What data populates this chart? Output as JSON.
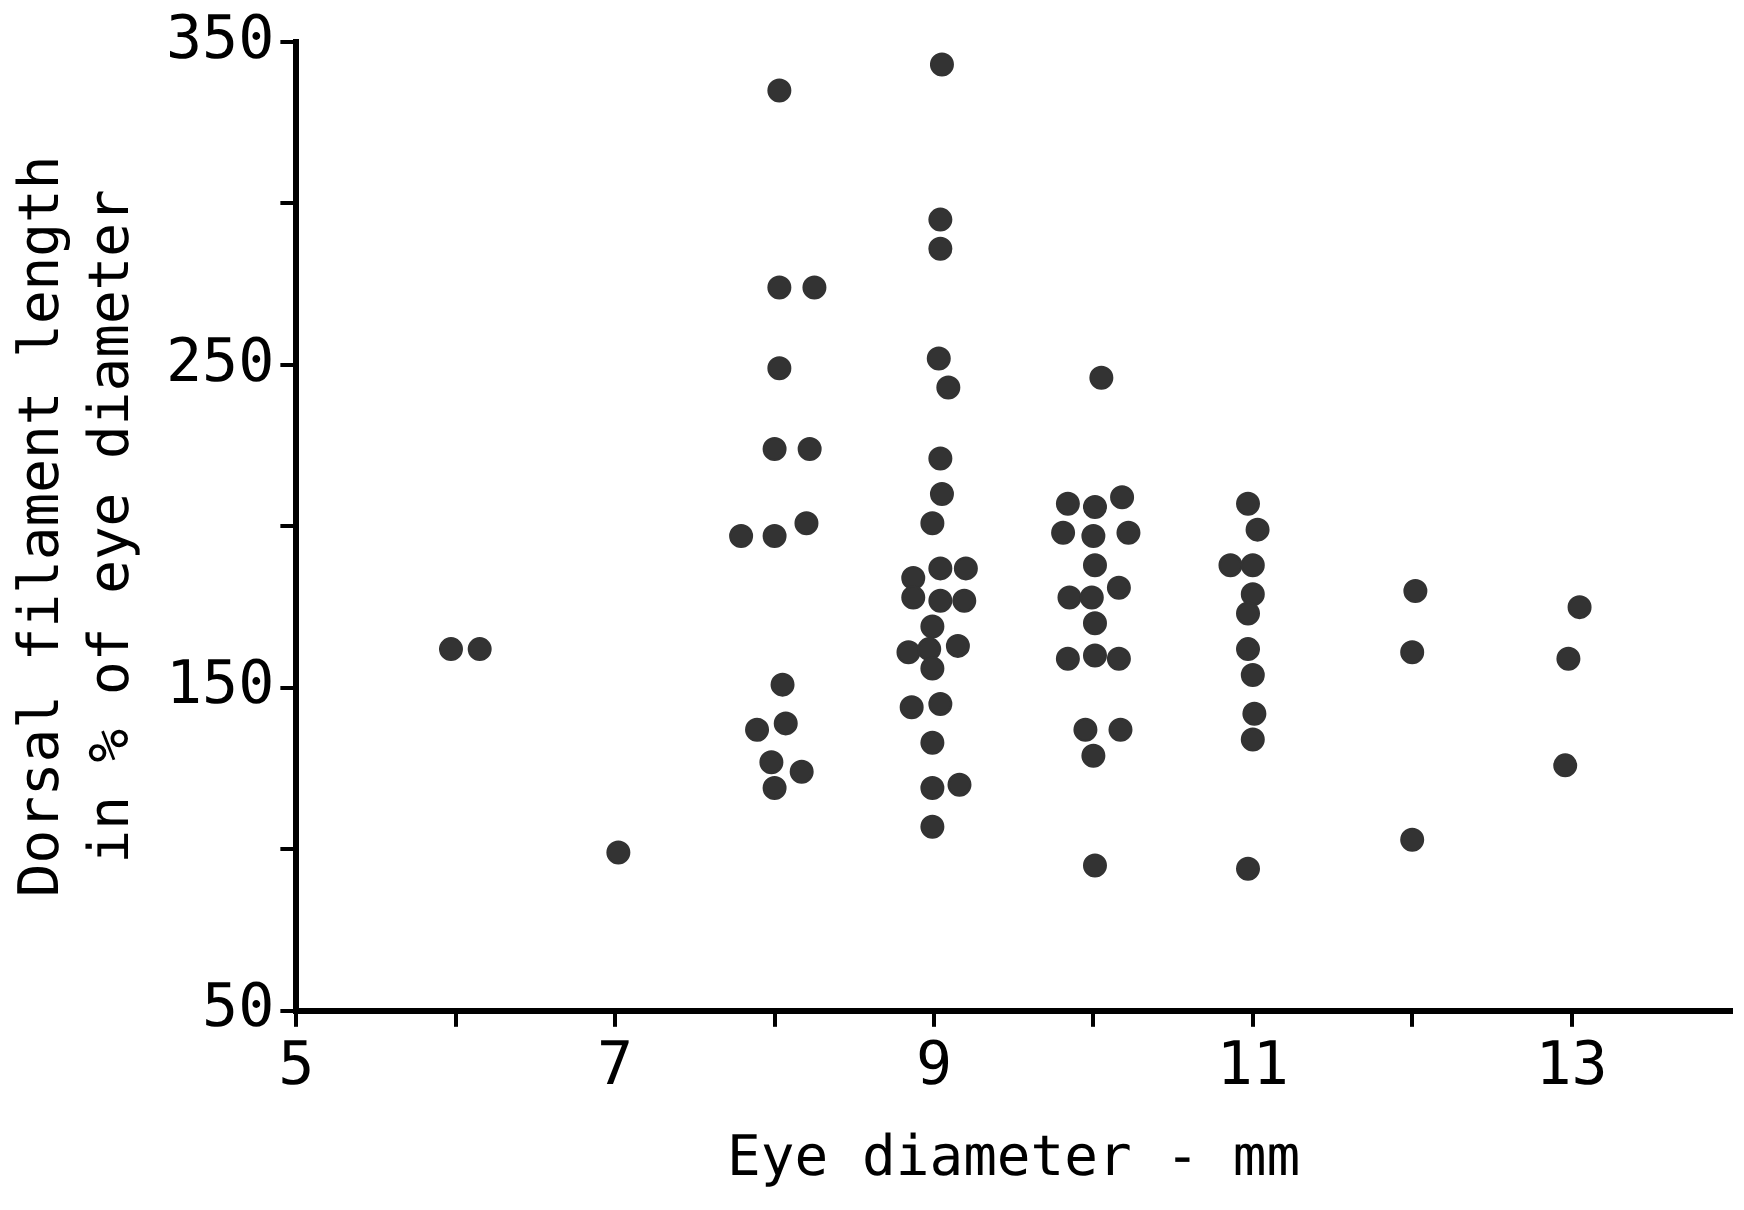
{
  "chart_data": {
    "type": "scatter",
    "xlabel": "Eye diameter - mm",
    "ylabel": "Dorsal filament length\nin % of eye diameter",
    "xlim": [
      5,
      14
    ],
    "xticks": [
      5,
      {
        "value": 6,
        "label": null
      },
      7,
      {
        "value": 8,
        "label": null
      },
      9,
      {
        "value": 10,
        "label": null
      },
      11,
      {
        "value": 12,
        "label": null
      },
      13
    ],
    "ylim": [
      50,
      350
    ],
    "yticks": [
      50,
      {
        "value": 100,
        "label": null
      },
      150,
      {
        "value": 200,
        "label": null
      },
      250,
      {
        "value": 300,
        "label": null
      },
      350
    ],
    "grid": false,
    "legend": false,
    "marker": "circle",
    "series": [
      {
        "color": "#333333",
        "x": [
          5.97,
          6.15,
          7.02,
          8.03,
          8.03,
          8.25,
          8.03,
          8.0,
          8.22,
          7.79,
          8.0,
          8.2,
          8.05,
          8.07,
          7.89,
          7.98,
          8.17,
          8.0,
          9.05,
          9.04,
          9.04,
          9.03,
          9.09,
          9.04,
          9.05,
          8.99,
          8.87,
          9.04,
          9.2,
          8.87,
          9.04,
          9.19,
          8.99,
          8.84,
          8.97,
          9.15,
          8.99,
          8.86,
          9.04,
          8.99,
          8.99,
          9.16,
          8.99,
          10.05,
          9.84,
          10.01,
          10.18,
          9.81,
          10.0,
          10.22,
          10.01,
          9.85,
          9.99,
          10.16,
          10.01,
          9.84,
          10.01,
          10.16,
          9.95,
          10.17,
          10.0,
          10.01,
          10.97,
          11.03,
          10.86,
          11.0,
          11.0,
          10.97,
          10.97,
          11.0,
          11.01,
          11.0,
          10.97,
          12.02,
          12.0,
          12.0,
          13.05,
          12.98,
          12.96
        ],
        "values": [
          162,
          162,
          99,
          335,
          274,
          274,
          249,
          224,
          224,
          197,
          197,
          201,
          151,
          139,
          137,
          127,
          124,
          119,
          343,
          295,
          286,
          252,
          243,
          221,
          210,
          201,
          184,
          187,
          187,
          178,
          177,
          177,
          169,
          161,
          162,
          163,
          156,
          144,
          145,
          133,
          119,
          120,
          107,
          246,
          207,
          206,
          209,
          198,
          197,
          198,
          188,
          178,
          178,
          181,
          170,
          159,
          160,
          159,
          137,
          137,
          129,
          95,
          207,
          199,
          188,
          188,
          179,
          173,
          162,
          154,
          142,
          134,
          94,
          180,
          161,
          103,
          175,
          159,
          126
        ]
      }
    ]
  }
}
